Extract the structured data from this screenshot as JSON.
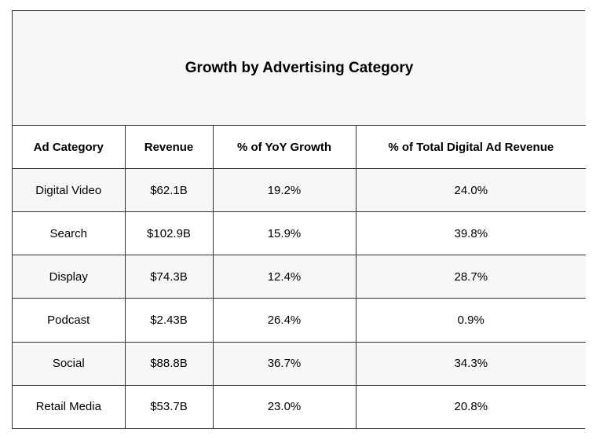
{
  "chart_data": {
    "type": "table",
    "title": "Growth by Advertising Category",
    "columns": [
      "Ad Category",
      "Revenue",
      "% of YoY Growth",
      "% of Total Digital Ad Revenue"
    ],
    "rows": [
      [
        "Digital Video",
        "$62.1B",
        "19.2%",
        "24.0%"
      ],
      [
        "Search",
        "$102.9B",
        "15.9%",
        "39.8%"
      ],
      [
        "Display",
        "$74.3B",
        "12.4%",
        "28.7%"
      ],
      [
        "Podcast",
        "$2.43B",
        "26.4%",
        "0.9%"
      ],
      [
        "Social",
        "$88.8B",
        "36.7%",
        "34.3%"
      ],
      [
        "Retail Media",
        "$53.7B",
        "23.0%",
        "20.8%"
      ]
    ]
  }
}
